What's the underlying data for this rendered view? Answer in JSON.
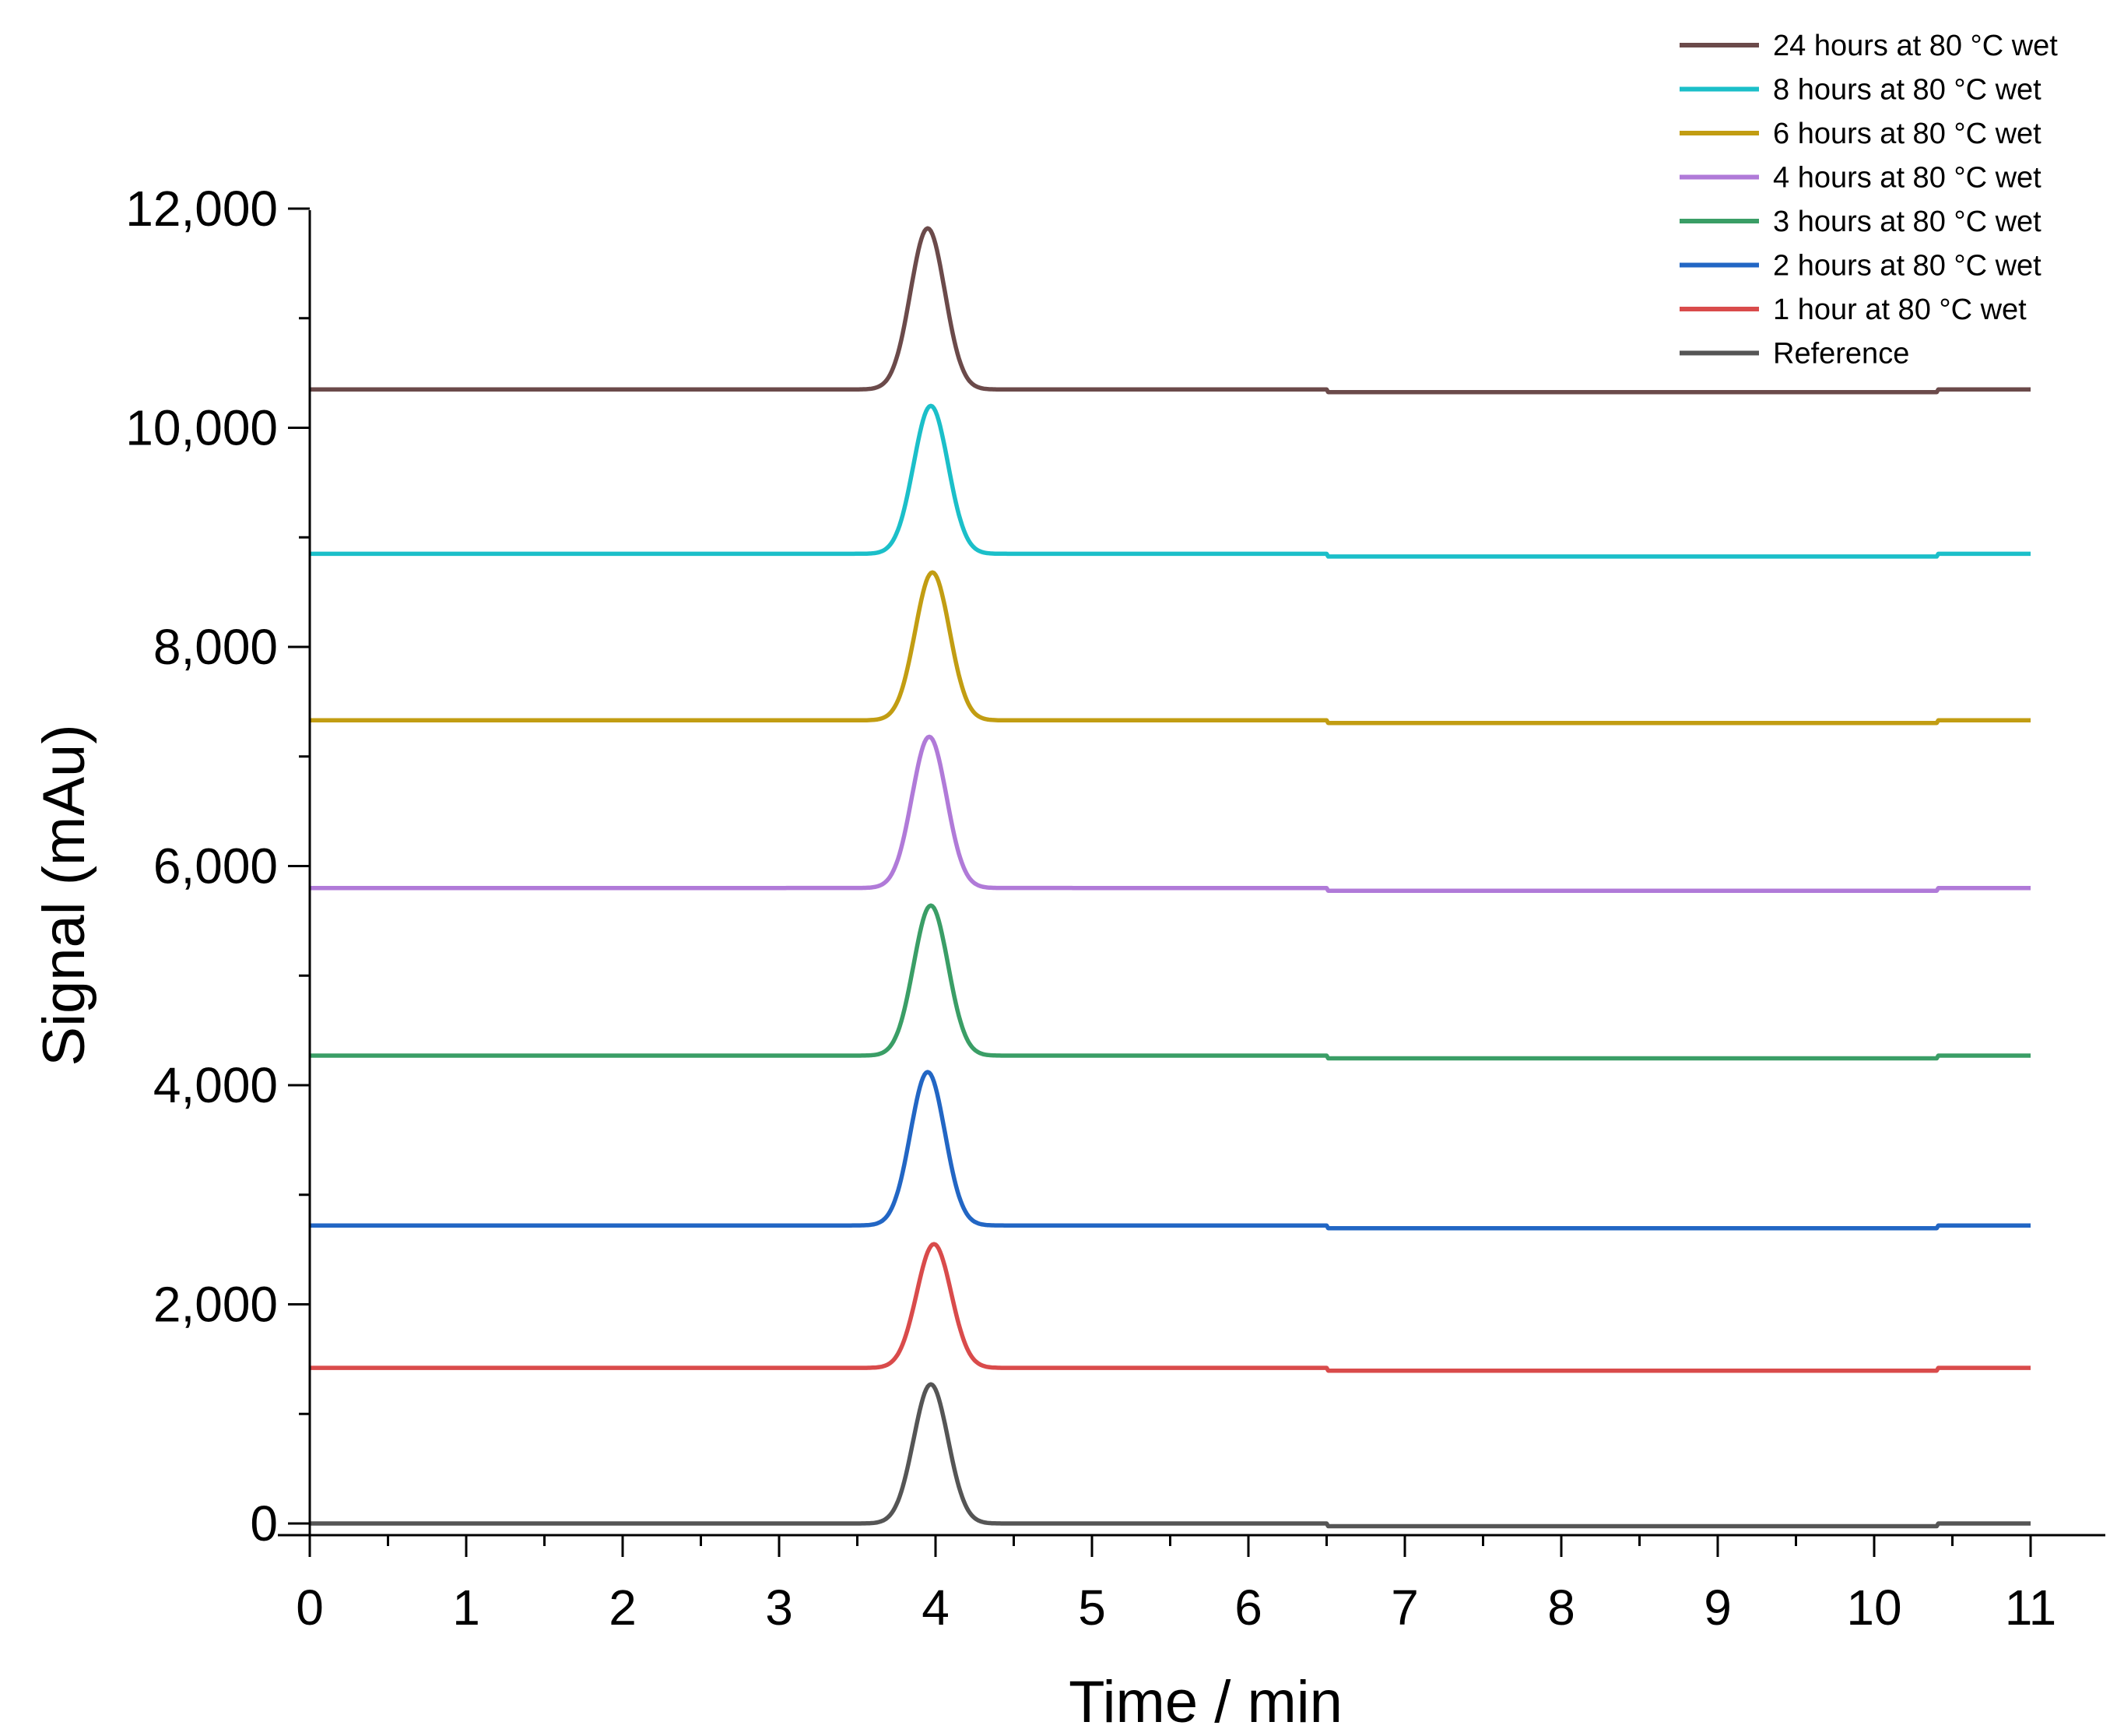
{
  "chart_data": {
    "type": "line",
    "xlabel": "Time / min",
    "ylabel": "Signal (mAu)",
    "xlim": [
      0,
      11
    ],
    "ylim": [
      -200,
      12300
    ],
    "xticks": [
      0,
      1,
      2,
      3,
      4,
      5,
      6,
      7,
      8,
      9,
      10,
      11
    ],
    "xtick_labels": [
      "0",
      "1",
      "2",
      "3",
      "4",
      "5",
      "6",
      "7",
      "8",
      "9",
      "10",
      "11"
    ],
    "yticks": [
      0,
      2000,
      4000,
      6000,
      8000,
      10000,
      12000
    ],
    "ytick_labels": [
      "0",
      "2,000",
      "4,000",
      "6,000",
      "8,000",
      "10,000",
      "12,000"
    ],
    "grid": false,
    "legend_position": "top-right",
    "series": [
      {
        "name": "24 hours at 80 °C wet",
        "color": "#6b4a4a",
        "baseline": 10350,
        "peak_time": 3.95,
        "peak_value": 11820
      },
      {
        "name": "8 hours at 80 °C wet",
        "color": "#1bbfc9",
        "baseline": 8850,
        "peak_time": 3.97,
        "peak_value": 10200
      },
      {
        "name": "6 hours at 80 °C wet",
        "color": "#c29d12",
        "baseline": 7330,
        "peak_time": 3.98,
        "peak_value": 8680
      },
      {
        "name": "4 hours at 80 °C wet",
        "color": "#b07ad8",
        "baseline": 5800,
        "peak_time": 3.96,
        "peak_value": 7180
      },
      {
        "name": "3 hours at 80 °C wet",
        "color": "#3a9e66",
        "baseline": 4270,
        "peak_time": 3.97,
        "peak_value": 5640
      },
      {
        "name": "2 hours at 80 °C wet",
        "color": "#2266c4",
        "baseline": 2720,
        "peak_time": 3.95,
        "peak_value": 4120
      },
      {
        "name": "1 hour at 80 °C wet",
        "color": "#d94b4b",
        "baseline": 1420,
        "peak_time": 3.99,
        "peak_value": 2550
      },
      {
        "name": "Reference",
        "color": "#555555",
        "baseline": 0,
        "peak_time": 3.97,
        "peak_value": 1270
      }
    ]
  }
}
